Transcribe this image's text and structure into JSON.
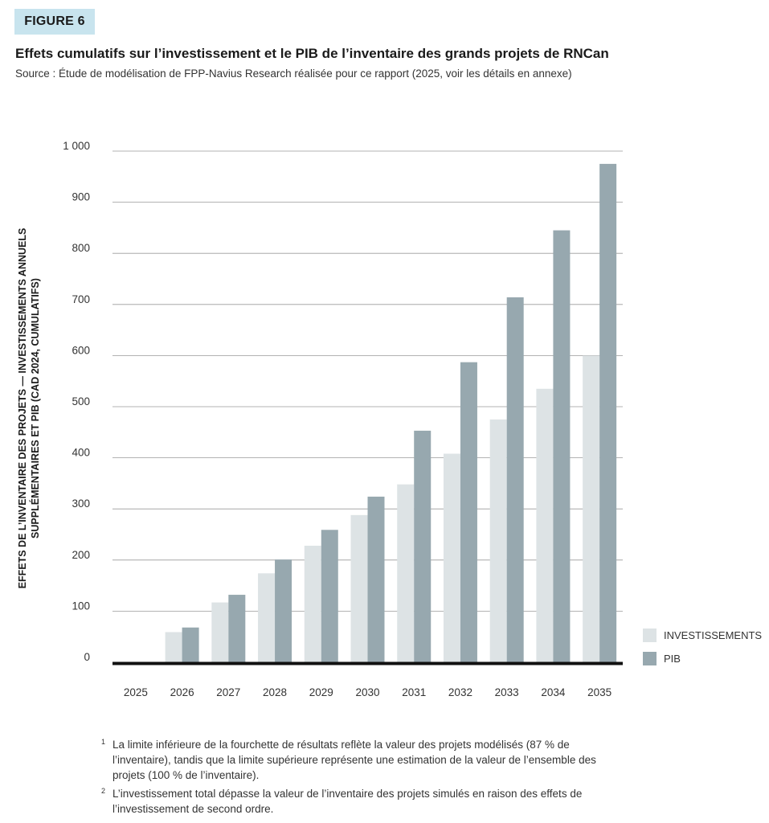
{
  "figure_label": "FIGURE 6",
  "title": "Effets cumulatifs sur l’investissement et le PIB de l’inventaire des grands projets de RNCan",
  "subtitle": "Source : Étude de modélisation de FPP-Navius Research réalisée pour ce rapport (2025, voir les détails en annexe)",
  "chart_data": {
    "type": "bar",
    "categories": [
      "2025",
      "2026",
      "2027",
      "2028",
      "2029",
      "2030",
      "2031",
      "2032",
      "2033",
      "2034",
      "2035"
    ],
    "series": [
      {
        "name": "INVESTISSEMENTS",
        "color": "#dde3e5",
        "values": [
          0,
          59,
          117,
          174,
          228,
          288,
          348,
          408,
          475,
          535,
          600
        ]
      },
      {
        "name": "PIB",
        "color": "#97a8af",
        "values": [
          0,
          68,
          132,
          201,
          259,
          324,
          453,
          587,
          714,
          845,
          975
        ]
      }
    ],
    "ylim": [
      0,
      1000
    ],
    "yticks": [
      0,
      100,
      200,
      300,
      400,
      500,
      600,
      700,
      800,
      900,
      1000
    ],
    "ytick_labels": [
      "0",
      "100",
      "200",
      "300",
      "400",
      "500",
      "600",
      "700",
      "800",
      "900",
      "1 000"
    ],
    "ylabel_line1": "EFFETS DE L’INVENTAIRE DES PROJETS — INVESTISSEMENTS ANNUELS",
    "ylabel_line2": "SUPPLÉMENTAIRES ET PIB (CAD 2024, CUMULATIFS)",
    "xlabel": "",
    "grid": true,
    "legend_position": "bottom-right"
  },
  "notes": [
    {
      "marker": "1",
      "text": "La limite inférieure de la fourchette de résultats reflète la valeur des projets modélisés (87 % de l’inventaire), tandis que la limite supérieure représente une estimation de la valeur de l’ensemble des projets (100 % de l’inventaire)."
    },
    {
      "marker": "2",
      "text": "L’investissement total dépasse la valeur de l’inventaire des projets simulés en raison des effets de l’investissement de second ordre."
    }
  ]
}
